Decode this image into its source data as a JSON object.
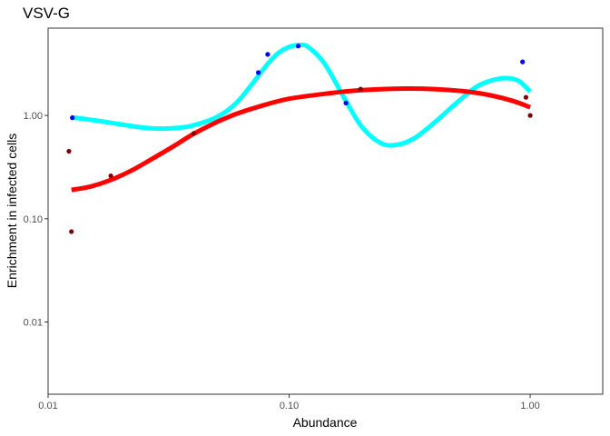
{
  "chart_data": {
    "type": "scatter",
    "title": "VSV-G",
    "xlabel": "Abundance",
    "ylabel": "Enrichment in infected cells",
    "x_scale": "log10",
    "y_scale": "log10",
    "xlim": [
      0.01,
      2.0
    ],
    "ylim": [
      0.002,
      7.0
    ],
    "x_ticks": [
      0.01,
      0.1,
      1.0
    ],
    "x_tick_labels": [
      "0.01",
      "0.10",
      "1.00"
    ],
    "y_ticks": [
      0.01,
      0.1,
      1.0
    ],
    "y_tick_labels": [
      "0.01",
      "0.10",
      "1.00"
    ],
    "grid": false,
    "legend": "none",
    "series": [
      {
        "color": "#0000ff",
        "marker": "point",
        "points": [
          {
            "x": 0.0126,
            "y": 0.95
          },
          {
            "x": 0.0745,
            "y": 2.6
          },
          {
            "x": 0.0815,
            "y": 3.9
          },
          {
            "x": 0.109,
            "y": 4.7
          },
          {
            "x": 0.172,
            "y": 1.32
          },
          {
            "x": 0.93,
            "y": 3.3
          }
        ]
      },
      {
        "color": "#7f0000",
        "marker": "point",
        "points": [
          {
            "x": 0.0122,
            "y": 0.45
          },
          {
            "x": 0.0125,
            "y": 0.075
          },
          {
            "x": 0.0182,
            "y": 0.26
          },
          {
            "x": 0.0402,
            "y": 0.67
          },
          {
            "x": 0.198,
            "y": 1.8
          },
          {
            "x": 0.96,
            "y": 1.5
          },
          {
            "x": 1.0,
            "y": 1.0
          }
        ]
      }
    ],
    "smooth_lines": [
      {
        "color": "#00ffff",
        "points": [
          {
            "x": 0.0125,
            "y": 0.96
          },
          {
            "x": 0.016,
            "y": 0.89
          },
          {
            "x": 0.02,
            "y": 0.82
          },
          {
            "x": 0.025,
            "y": 0.76
          },
          {
            "x": 0.03,
            "y": 0.745
          },
          {
            "x": 0.035,
            "y": 0.76
          },
          {
            "x": 0.04,
            "y": 0.8
          },
          {
            "x": 0.05,
            "y": 0.96
          },
          {
            "x": 0.06,
            "y": 1.3
          },
          {
            "x": 0.07,
            "y": 2.0
          },
          {
            "x": 0.08,
            "y": 3.0
          },
          {
            "x": 0.09,
            "y": 4.0
          },
          {
            "x": 0.1,
            "y": 4.6
          },
          {
            "x": 0.11,
            "y": 4.8
          },
          {
            "x": 0.12,
            "y": 4.6
          },
          {
            "x": 0.14,
            "y": 3.2
          },
          {
            "x": 0.17,
            "y": 1.45
          },
          {
            "x": 0.2,
            "y": 0.78
          },
          {
            "x": 0.24,
            "y": 0.54
          },
          {
            "x": 0.28,
            "y": 0.52
          },
          {
            "x": 0.33,
            "y": 0.6
          },
          {
            "x": 0.4,
            "y": 0.85
          },
          {
            "x": 0.5,
            "y": 1.35
          },
          {
            "x": 0.6,
            "y": 1.9
          },
          {
            "x": 0.7,
            "y": 2.2
          },
          {
            "x": 0.8,
            "y": 2.3
          },
          {
            "x": 0.9,
            "y": 2.15
          },
          {
            "x": 1.0,
            "y": 1.7
          }
        ]
      },
      {
        "color": "#ff0000",
        "points": [
          {
            "x": 0.0125,
            "y": 0.19
          },
          {
            "x": 0.015,
            "y": 0.205
          },
          {
            "x": 0.018,
            "y": 0.235
          },
          {
            "x": 0.022,
            "y": 0.29
          },
          {
            "x": 0.027,
            "y": 0.38
          },
          {
            "x": 0.033,
            "y": 0.5
          },
          {
            "x": 0.04,
            "y": 0.66
          },
          {
            "x": 0.05,
            "y": 0.86
          },
          {
            "x": 0.06,
            "y": 1.03
          },
          {
            "x": 0.075,
            "y": 1.22
          },
          {
            "x": 0.1,
            "y": 1.45
          },
          {
            "x": 0.15,
            "y": 1.65
          },
          {
            "x": 0.2,
            "y": 1.76
          },
          {
            "x": 0.3,
            "y": 1.82
          },
          {
            "x": 0.4,
            "y": 1.8
          },
          {
            "x": 0.55,
            "y": 1.7
          },
          {
            "x": 0.7,
            "y": 1.55
          },
          {
            "x": 0.85,
            "y": 1.38
          },
          {
            "x": 1.0,
            "y": 1.2
          }
        ]
      }
    ]
  }
}
